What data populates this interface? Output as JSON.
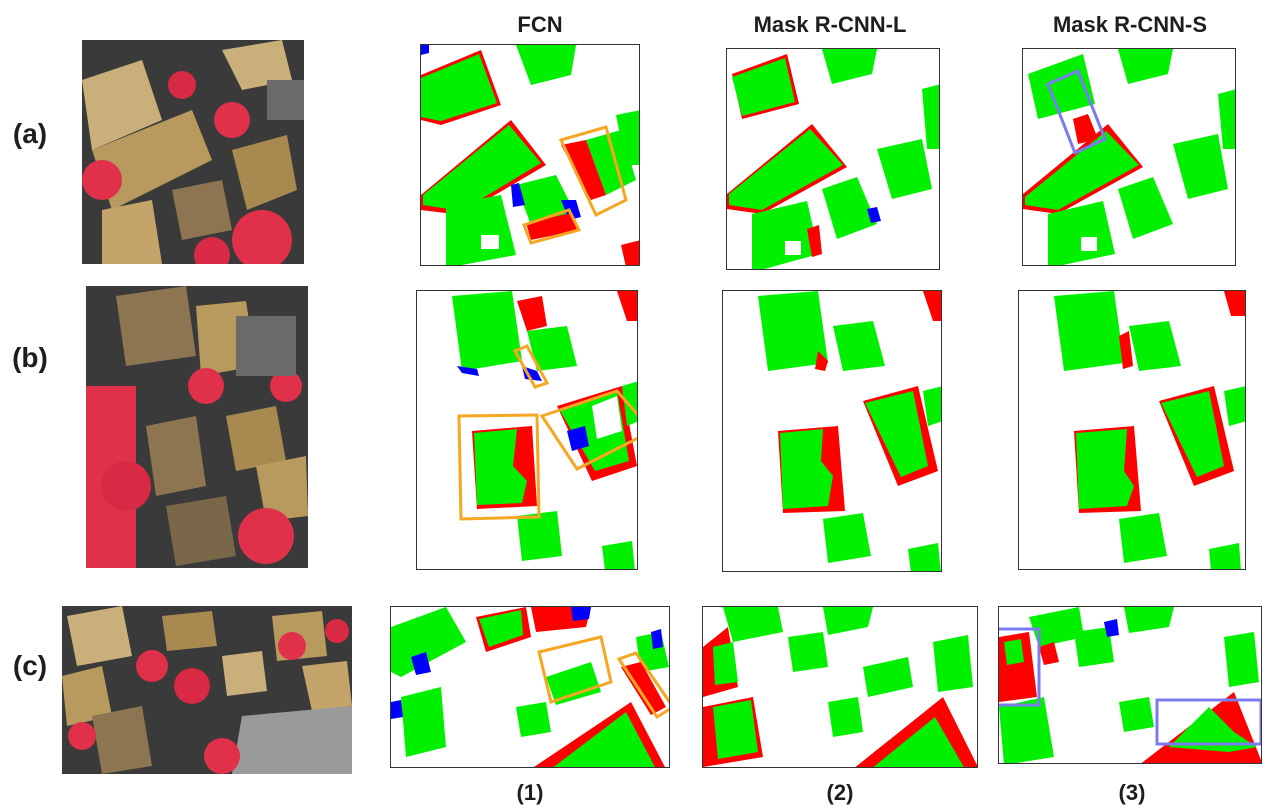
{
  "columns": [
    "FCN",
    "Mask R-CNN-L",
    "Mask R-CNN-S"
  ],
  "rows": [
    "(a)",
    "(b)",
    "(c)"
  ],
  "column_numbers": [
    "(1)",
    "(2)",
    "(3)"
  ],
  "colors": {
    "correct": "#00f000",
    "false_negative": "#ff0000",
    "false_positive": "#0000ff",
    "highlight_fcn": "#f5a623",
    "highlight_mask": "#7b7bf0",
    "vegetation": "#e0304a",
    "roof": "#c9b07a",
    "street": "#4a4a4a"
  }
}
